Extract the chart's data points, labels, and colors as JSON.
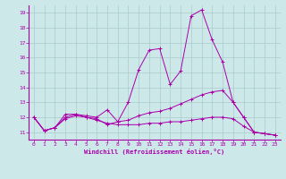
{
  "background_color": "#cce8e8",
  "line_color": "#aa00aa",
  "grid_color": "#aacccc",
  "xlabel": "Windchill (Refroidissement éolien,°C)",
  "xlim": [
    -0.5,
    23.5
  ],
  "ylim": [
    10.5,
    19.5
  ],
  "yticks": [
    11,
    12,
    13,
    14,
    15,
    16,
    17,
    18,
    19
  ],
  "xticks": [
    0,
    1,
    2,
    3,
    4,
    5,
    6,
    7,
    8,
    9,
    10,
    11,
    12,
    13,
    14,
    15,
    16,
    17,
    18,
    19,
    20,
    21,
    22,
    23
  ],
  "line1": {
    "x": [
      0,
      1,
      2,
      3,
      4,
      5,
      6,
      7,
      8,
      9,
      10,
      11,
      12,
      13,
      14,
      15,
      16,
      17,
      18,
      19,
      20,
      21,
      22,
      23
    ],
    "y": [
      12.0,
      11.1,
      11.3,
      12.2,
      12.2,
      12.1,
      12.0,
      12.5,
      11.7,
      13.0,
      15.2,
      16.5,
      16.6,
      14.2,
      15.1,
      18.8,
      19.2,
      17.2,
      15.7,
      13.0,
      12.0,
      11.0,
      10.9,
      10.8
    ]
  },
  "line2": {
    "x": [
      0,
      1,
      2,
      3,
      4,
      5,
      6,
      7,
      8,
      9,
      10,
      11,
      12,
      13,
      14,
      15,
      16,
      17,
      18,
      19,
      20,
      21,
      22,
      23
    ],
    "y": [
      12.0,
      11.1,
      11.3,
      12.0,
      12.2,
      12.0,
      11.9,
      11.5,
      11.7,
      11.8,
      12.1,
      12.3,
      12.4,
      12.6,
      12.9,
      13.2,
      13.5,
      13.7,
      13.8,
      13.0,
      12.0,
      11.0,
      10.9,
      10.8
    ]
  },
  "line3": {
    "x": [
      0,
      1,
      2,
      3,
      4,
      5,
      6,
      7,
      8,
      9,
      10,
      11,
      12,
      13,
      14,
      15,
      16,
      17,
      18,
      19,
      20,
      21,
      22,
      23
    ],
    "y": [
      12.0,
      11.1,
      11.3,
      11.9,
      12.1,
      12.0,
      11.8,
      11.6,
      11.5,
      11.5,
      11.5,
      11.6,
      11.6,
      11.7,
      11.7,
      11.8,
      11.9,
      12.0,
      12.0,
      11.9,
      11.4,
      11.0,
      10.9,
      10.8
    ]
  }
}
